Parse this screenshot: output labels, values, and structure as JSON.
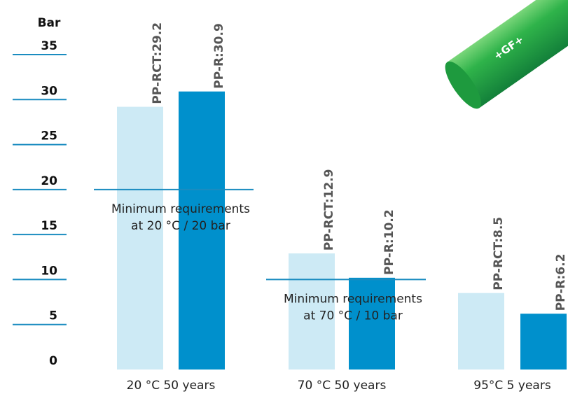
{
  "chart_data": {
    "type": "bar",
    "ylabel": "Bar",
    "categories": [
      "20 °C 50 years",
      "70 °C 50 years",
      "95°C 5 years"
    ],
    "series": [
      {
        "name": "PP-RCT",
        "color": "#cdeaf5",
        "values": [
          29.2,
          12.9,
          8.5
        ],
        "value_labels": [
          "PP-RCT:29.2",
          "PP-RCT:12.9",
          "PP-RCT:8.5"
        ]
      },
      {
        "name": "PP-R",
        "color": "#0090cc",
        "values": [
          30.9,
          10.2,
          6.2
        ],
        "value_labels": [
          "PP-R:30.9",
          "PP-R:10.2",
          "PP-R:6.2"
        ]
      }
    ],
    "ylim": [
      0,
      35
    ],
    "yticks": [
      0,
      5,
      10,
      15,
      20,
      25,
      30,
      35
    ],
    "reference_lines": [
      {
        "value": 20,
        "label": [
          "Minimum requirements",
          "at 20 °C / 20 bar"
        ]
      },
      {
        "value": 10,
        "label": [
          "Minimum requirements",
          "at 70 °C / 10 bar"
        ]
      }
    ],
    "logo_text": "+GF+"
  }
}
